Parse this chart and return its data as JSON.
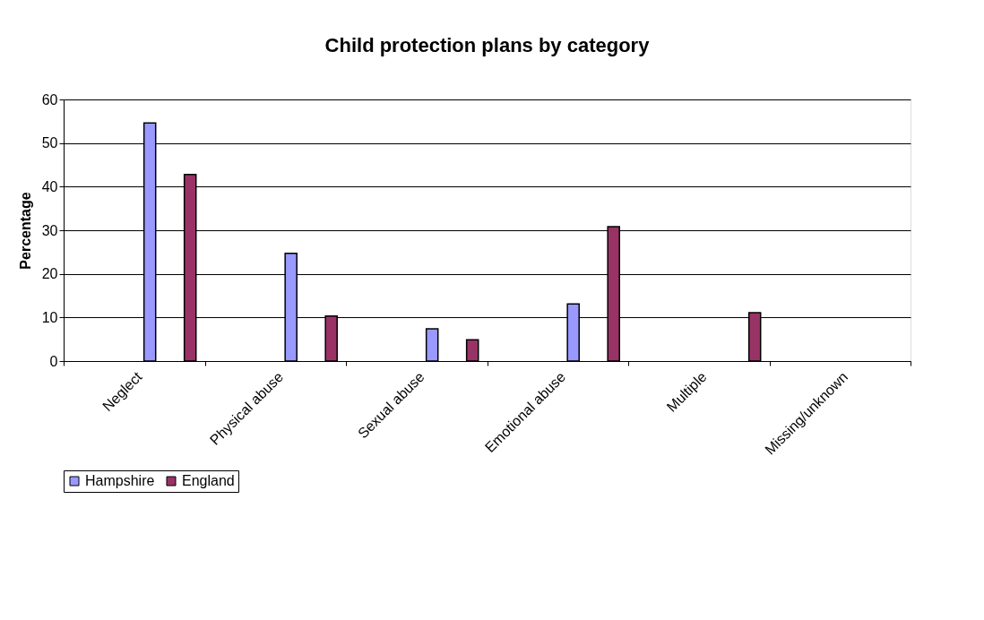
{
  "chart_data": {
    "type": "bar",
    "title": "Child protection plans by category",
    "ylabel": "Percentage",
    "categories": [
      "Neglect",
      "Physical abuse",
      "Sexual abuse",
      "Emotional abuse",
      "Multiple",
      "Missing/unknown"
    ],
    "series": [
      {
        "name": "Hampshire",
        "color": "#9999ff",
        "values": [
          54.6,
          24.7,
          7.4,
          13.1,
          null,
          null
        ]
      },
      {
        "name": "England",
        "color": "#993366",
        "values": [
          42.8,
          10.3,
          4.9,
          30.8,
          11.1,
          null
        ]
      }
    ],
    "ylim": [
      0,
      60
    ],
    "yticks": [
      0,
      10,
      20,
      30,
      40,
      50,
      60
    ],
    "grid": "y",
    "legend": "bottom"
  }
}
